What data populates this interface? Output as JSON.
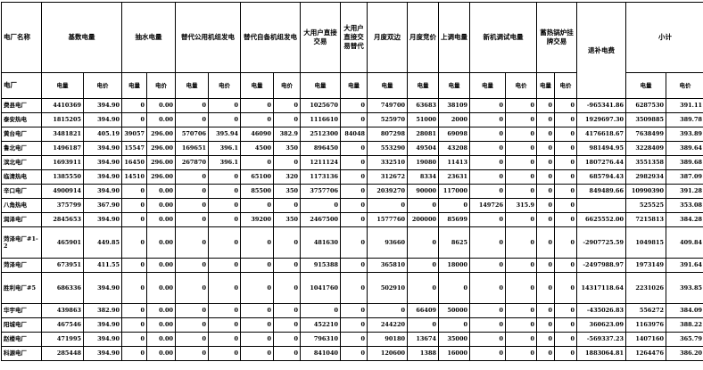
{
  "header": {
    "groups": [
      {
        "label": "电厂名称",
        "span": 1
      },
      {
        "label": "基数电量",
        "span": 2
      },
      {
        "label": "抽水电量",
        "span": 2
      },
      {
        "label": "替代公用机组发电",
        "span": 2
      },
      {
        "label": "替代自备机组发电",
        "span": 2
      },
      {
        "label": "大用户直接交易",
        "span": 1
      },
      {
        "label": "大用户直接交易替代",
        "span": 1
      },
      {
        "label": "月度双边",
        "span": 1
      },
      {
        "label": "月度竞价",
        "span": 1
      },
      {
        "label": "上调电量",
        "span": 1
      },
      {
        "label": "新机调试电量",
        "span": 2
      },
      {
        "label": "蓄热锅炉挂牌交易",
        "span": 2
      },
      {
        "label": "退补电费",
        "span": 1,
        "rowspan": 2
      },
      {
        "label": "小计",
        "span": 2
      }
    ],
    "subheaders": [
      "电厂",
      "电量",
      "电价",
      "电量",
      "电价",
      "电量",
      "电价",
      "电量",
      "电价",
      "电量",
      "电量",
      "电量",
      "电量",
      "电量",
      "电量",
      "电价",
      "电量",
      "电价",
      "电量",
      "电价"
    ]
  },
  "rows": [
    [
      "费县电厂",
      "4410369",
      "394.90",
      "0",
      "0.00",
      "0",
      "0",
      "0",
      "0",
      "1025670",
      "0",
      "749700",
      "63683",
      "38109",
      "0",
      "0",
      "0",
      "0",
      "-965341.86",
      "6287530",
      "391.11"
    ],
    [
      "泰安热电",
      "1815205",
      "394.90",
      "0",
      "0.00",
      "0",
      "0",
      "0",
      "0",
      "1116610",
      "0",
      "525970",
      "51000",
      "2000",
      "0",
      "0",
      "0",
      "0",
      "1929697.30",
      "3509885",
      "389.78"
    ],
    [
      "黄台电厂",
      "3481821",
      "405.19",
      "39057",
      "296.00",
      "570706",
      "395.94",
      "46090",
      "382.9",
      "2512300",
      "84048",
      "807298",
      "28081",
      "69098",
      "0",
      "0",
      "0",
      "0",
      "4176618.67",
      "7638499",
      "393.89"
    ],
    [
      "鲁北电厂",
      "1496187",
      "394.90",
      "15547",
      "296.00",
      "169651",
      "396.1",
      "4500",
      "350",
      "896450",
      "0",
      "553290",
      "49504",
      "43208",
      "0",
      "0",
      "0",
      "0",
      "981494.95",
      "3228409",
      "389.64"
    ],
    [
      "滨北电厂",
      "1693911",
      "394.90",
      "16450",
      "296.00",
      "267870",
      "396.1",
      "0",
      "0",
      "1211124",
      "0",
      "332510",
      "19080",
      "11413",
      "0",
      "0",
      "0",
      "0",
      "1807276.44",
      "3551358",
      "389.68"
    ],
    [
      "临清热电",
      "1385550",
      "394.90",
      "14510",
      "296.00",
      "0",
      "0",
      "65100",
      "320",
      "1173136",
      "0",
      "312672",
      "8334",
      "23631",
      "0",
      "0",
      "0",
      "0",
      "685794.43",
      "2982934",
      "387.09"
    ],
    [
      "辛口电厂",
      "4900914",
      "394.90",
      "0",
      "0.00",
      "0",
      "0",
      "85500",
      "350",
      "3757706",
      "0",
      "2039270",
      "90000",
      "117000",
      "0",
      "0",
      "0",
      "0",
      "849489.66",
      "10990390",
      "391.28"
    ],
    [
      "八角热电",
      "375799",
      "367.90",
      "0",
      "0.00",
      "0",
      "0",
      "0",
      "0",
      "0",
      "0",
      "0",
      "0",
      "0",
      "149726",
      "315.9",
      "0",
      "0",
      null,
      "525525",
      "353.08"
    ],
    [
      "润泽电厂",
      "2845653",
      "394.90",
      "0",
      "0.00",
      "0",
      "0",
      "39200",
      "350",
      "2467500",
      "0",
      "1577760",
      "200000",
      "85699",
      "0",
      "0",
      "0",
      "0",
      "6625552.00",
      "7215813",
      "384.28"
    ],
    [
      "菏泽电厂#1-2",
      "465901",
      "449.85",
      "0",
      "0.00",
      "0",
      "0",
      "0",
      "0",
      "481630",
      "0",
      "93660",
      "0",
      "8625",
      "0",
      "0",
      "0",
      "0",
      "-2907725.59",
      "1049815",
      "409.84"
    ],
    [
      "菏泽电厂",
      "673951",
      "411.55",
      "0",
      "0.00",
      "0",
      "0",
      "0",
      "0",
      "915388",
      "0",
      "365810",
      "0",
      "18000",
      "0",
      "0",
      "0",
      "0",
      "-2497988.97",
      "1973149",
      "391.64"
    ],
    [
      "胜利电厂#5",
      "686336",
      "394.90",
      "0",
      "0.00",
      "0",
      "0",
      "0",
      "0",
      "1041760",
      "0",
      "502910",
      "0",
      "0",
      "0",
      "0",
      "0",
      "0",
      "14317118.64",
      "2231026",
      "393.85"
    ],
    [
      "华宇电厂",
      "439863",
      "382.90",
      "0",
      "0.00",
      "0",
      "0",
      "0",
      "0",
      "0",
      "0",
      "0",
      "66409",
      "50000",
      "0",
      "0",
      "0",
      "0",
      "-435026.83",
      "556272",
      "384.09"
    ],
    [
      "阳城电厂",
      "467546",
      "394.90",
      "0",
      "0.00",
      "0",
      "0",
      "0",
      "0",
      "452210",
      "0",
      "244220",
      "0",
      "0",
      "0",
      "0",
      "0",
      "0",
      "360623.09",
      "1163976",
      "388.22"
    ],
    [
      "赵楼电厂",
      "471995",
      "394.90",
      "0",
      "0.00",
      "0",
      "0",
      "0",
      "0",
      "796310",
      "0",
      "90180",
      "13674",
      "35000",
      "0",
      "0",
      "0",
      "0",
      "-569337.23",
      "1407160",
      "365.79"
    ],
    [
      "科源电厂",
      "285448",
      "394.90",
      "0",
      "0.00",
      "0",
      "0",
      "0",
      "0",
      "841040",
      "0",
      "120600",
      "1388",
      "16000",
      "0",
      "0",
      "0",
      "0",
      "1883064.81",
      "1264476",
      "386.20"
    ]
  ]
}
